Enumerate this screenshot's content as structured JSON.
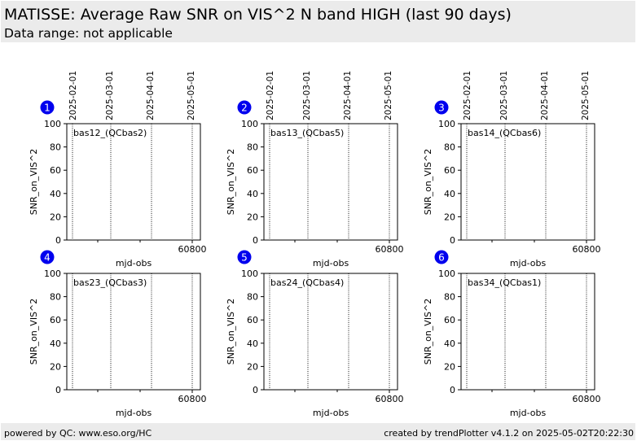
{
  "header": {
    "title": "MATISSE: Average Raw SNR on VIS^2 N band HIGH (last 90 days)",
    "subtitle": "Data range: not applicable"
  },
  "footer": {
    "left": "powered by QC: www.eso.org/HC",
    "right": "created by trendPlotter v4.1.2 on 2025-05-02T20:22:30"
  },
  "colors": {
    "header_bg": "#ebebeb",
    "badge": "#0000ee",
    "badge_text": "#ffffff"
  },
  "chart_data": [
    {
      "type": "scatter",
      "number": "1",
      "label": "bas12_(QCbas2)",
      "xlabel": "mjd-obs",
      "ylabel": "SNR_on_VIS^2",
      "ylim": [
        0,
        100
      ],
      "yticks": [
        "0",
        "20",
        "40",
        "60",
        "80",
        "100"
      ],
      "xticks": [
        "60800"
      ],
      "date_ticks": [
        "2025-02-01",
        "2025-03-01",
        "2025-04-01",
        "2025-05-01"
      ],
      "series": []
    },
    {
      "type": "scatter",
      "number": "2",
      "label": "bas13_(QCbas5)",
      "xlabel": "mjd-obs",
      "ylabel": "SNR_on_VIS^2",
      "ylim": [
        0,
        100
      ],
      "yticks": [
        "0",
        "20",
        "40",
        "60",
        "80",
        "100"
      ],
      "xticks": [
        "60800"
      ],
      "date_ticks": [
        "2025-02-01",
        "2025-03-01",
        "2025-04-01",
        "2025-05-01"
      ],
      "series": []
    },
    {
      "type": "scatter",
      "number": "3",
      "label": "bas14_(QCbas6)",
      "xlabel": "mjd-obs",
      "ylabel": "SNR_on_VIS^2",
      "ylim": [
        0,
        100
      ],
      "yticks": [
        "0",
        "20",
        "40",
        "60",
        "80",
        "100"
      ],
      "xticks": [
        "60800"
      ],
      "date_ticks": [
        "2025-02-01",
        "2025-03-01",
        "2025-04-01",
        "2025-05-01"
      ],
      "series": []
    },
    {
      "type": "scatter",
      "number": "4",
      "label": "bas23_(QCbas3)",
      "xlabel": "mjd-obs",
      "ylabel": "SNR_on_VIS^2",
      "ylim": [
        0,
        100
      ],
      "yticks": [
        "0",
        "20",
        "40",
        "60",
        "80",
        "100"
      ],
      "xticks": [
        "60800"
      ],
      "date_ticks": [],
      "series": []
    },
    {
      "type": "scatter",
      "number": "5",
      "label": "bas24_(QCbas4)",
      "xlabel": "mjd-obs",
      "ylabel": "SNR_on_VIS^2",
      "ylim": [
        0,
        100
      ],
      "yticks": [
        "0",
        "20",
        "40",
        "60",
        "80",
        "100"
      ],
      "xticks": [
        "60800"
      ],
      "date_ticks": [],
      "series": []
    },
    {
      "type": "scatter",
      "number": "6",
      "label": "bas34_(QCbas1)",
      "xlabel": "mjd-obs",
      "ylabel": "SNR_on_VIS^2",
      "ylim": [
        0,
        100
      ],
      "yticks": [
        "0",
        "20",
        "40",
        "60",
        "80",
        "100"
      ],
      "xticks": [
        "60800"
      ],
      "date_ticks": [],
      "series": []
    }
  ]
}
